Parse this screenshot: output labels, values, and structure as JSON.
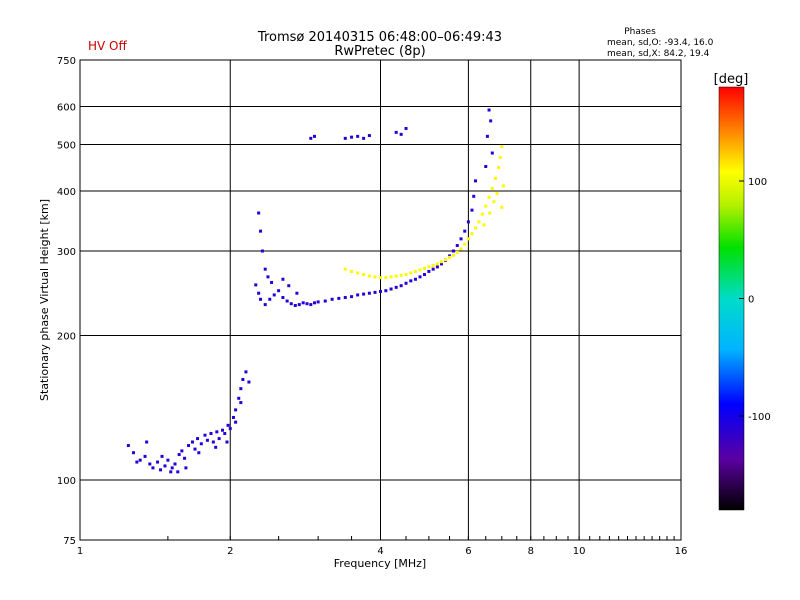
{
  "header": {
    "title_line1": "Tromsø 20140315 06:48:00–06:49:43",
    "title_line2": "RwPretec (8p)",
    "hv_status": "HV Off",
    "hv_color": "#cc0000",
    "phase_title": "Phases",
    "phase_o": "mean, sd,O: -93.4, 16.0",
    "phase_x": "mean, sd,X:  84.2, 19.4"
  },
  "chart_data": {
    "type": "scatter",
    "xlabel": "Frequency [MHz]",
    "ylabel": "Stationary phase Virtual Height [km]",
    "x_scale": "log",
    "y_scale": "log",
    "xlim": [
      1,
      16
    ],
    "ylim": [
      75,
      750
    ],
    "x_ticks": [
      1,
      2,
      4,
      6,
      8,
      10,
      16
    ],
    "y_ticks": [
      75,
      100,
      200,
      300,
      400,
      500,
      600,
      750
    ],
    "grid": true,
    "colorbar": {
      "label": "[deg]",
      "range": [
        -180,
        180
      ],
      "ticks": [
        100,
        0,
        -100
      ]
    },
    "series": [
      {
        "points": [
          [
            1.25,
            118,
            -110
          ],
          [
            1.28,
            114,
            -110
          ],
          [
            1.3,
            109,
            -110
          ],
          [
            1.32,
            110,
            -110
          ],
          [
            1.35,
            112,
            -110
          ],
          [
            1.38,
            108,
            -110
          ],
          [
            1.4,
            106,
            -110
          ],
          [
            1.43,
            109,
            -110
          ],
          [
            1.45,
            105,
            -110
          ],
          [
            1.48,
            107,
            -110
          ],
          [
            1.5,
            110,
            -110
          ],
          [
            1.53,
            106,
            -110
          ],
          [
            1.55,
            108,
            -110
          ],
          [
            1.58,
            113,
            -110
          ],
          [
            1.6,
            115,
            -110
          ],
          [
            1.62,
            111,
            -110
          ],
          [
            1.65,
            118,
            -110
          ],
          [
            1.68,
            120,
            -110
          ],
          [
            1.7,
            116,
            -110
          ],
          [
            1.72,
            122,
            -110
          ],
          [
            1.75,
            119,
            -110
          ],
          [
            1.78,
            124,
            -110
          ],
          [
            1.8,
            121,
            -110
          ],
          [
            1.83,
            125,
            -110
          ],
          [
            1.85,
            120,
            -110
          ],
          [
            1.88,
            126,
            -110
          ],
          [
            1.9,
            122,
            -110
          ],
          [
            1.93,
            127,
            -110
          ],
          [
            1.95,
            125,
            -110
          ],
          [
            1.98,
            130,
            -110
          ],
          [
            2.0,
            128,
            -110
          ],
          [
            2.03,
            135,
            -110
          ],
          [
            2.05,
            140,
            -110
          ],
          [
            2.08,
            148,
            -110
          ],
          [
            2.1,
            155,
            -110
          ],
          [
            2.12,
            162,
            -110
          ],
          [
            2.15,
            168,
            -110
          ],
          [
            2.18,
            160,
            -110
          ],
          [
            2.05,
            132,
            -110
          ],
          [
            2.1,
            145,
            -110
          ],
          [
            1.36,
            120,
            -110
          ],
          [
            1.46,
            112,
            -110
          ],
          [
            1.52,
            104,
            -110
          ],
          [
            1.57,
            104,
            -110
          ],
          [
            1.63,
            106,
            -110
          ],
          [
            1.73,
            114,
            -110
          ],
          [
            1.87,
            117,
            -110
          ],
          [
            1.97,
            120,
            -110
          ],
          [
            2.25,
            255,
            -110
          ],
          [
            2.28,
            245,
            -110
          ],
          [
            2.3,
            238,
            -110
          ],
          [
            2.35,
            232,
            -110
          ],
          [
            2.4,
            238,
            -110
          ],
          [
            2.45,
            243,
            -110
          ],
          [
            2.5,
            248,
            -110
          ],
          [
            2.55,
            240,
            -110
          ],
          [
            2.6,
            236,
            -110
          ],
          [
            2.65,
            233,
            -110
          ],
          [
            2.7,
            231,
            -110
          ],
          [
            2.75,
            232,
            -110
          ],
          [
            2.8,
            234,
            -110
          ],
          [
            2.85,
            233,
            -110
          ],
          [
            2.9,
            232,
            -110
          ],
          [
            2.95,
            234,
            -110
          ],
          [
            3.0,
            235,
            -110
          ],
          [
            3.1,
            236,
            -110
          ],
          [
            3.2,
            238,
            -110
          ],
          [
            3.3,
            239,
            -110
          ],
          [
            3.4,
            240,
            -110
          ],
          [
            3.5,
            241,
            -110
          ],
          [
            3.6,
            243,
            -110
          ],
          [
            3.7,
            244,
            -110
          ],
          [
            3.8,
            245,
            -110
          ],
          [
            3.9,
            246,
            -110
          ],
          [
            4.0,
            247,
            -110
          ],
          [
            4.1,
            248,
            -110
          ],
          [
            4.2,
            250,
            -110
          ],
          [
            4.3,
            252,
            -110
          ],
          [
            4.4,
            254,
            -110
          ],
          [
            4.5,
            257,
            -110
          ],
          [
            4.6,
            260,
            -110
          ],
          [
            4.7,
            262,
            -110
          ],
          [
            4.8,
            265,
            -110
          ],
          [
            4.9,
            268,
            -110
          ],
          [
            5.0,
            272,
            -110
          ],
          [
            5.1,
            275,
            -110
          ],
          [
            5.2,
            278,
            -110
          ],
          [
            5.3,
            282,
            -110
          ],
          [
            5.4,
            287,
            -110
          ],
          [
            5.5,
            293,
            -110
          ],
          [
            5.6,
            300,
            -110
          ],
          [
            5.7,
            308,
            -110
          ],
          [
            5.8,
            318,
            -110
          ],
          [
            5.9,
            330,
            -110
          ],
          [
            6.0,
            345,
            -110
          ],
          [
            6.1,
            365,
            -110
          ],
          [
            6.15,
            390,
            -110
          ],
          [
            6.2,
            420,
            -110
          ],
          [
            2.28,
            360,
            -110
          ],
          [
            2.3,
            330,
            -110
          ],
          [
            2.32,
            300,
            -110
          ],
          [
            2.35,
            275,
            -110
          ],
          [
            2.38,
            265,
            -110
          ],
          [
            2.42,
            258,
            -110
          ],
          [
            2.55,
            262,
            -110
          ],
          [
            2.62,
            254,
            -110
          ],
          [
            2.72,
            245,
            -110
          ],
          [
            6.5,
            450,
            -110
          ],
          [
            6.55,
            520,
            -110
          ],
          [
            6.6,
            590,
            -110
          ],
          [
            6.65,
            560,
            -110
          ],
          [
            6.7,
            480,
            -110
          ],
          [
            3.4,
            515,
            -110
          ],
          [
            3.5,
            518,
            -110
          ],
          [
            3.6,
            520,
            -110
          ],
          [
            3.7,
            515,
            -110
          ],
          [
            3.8,
            522,
            -110
          ],
          [
            2.9,
            515,
            -110
          ],
          [
            2.95,
            520,
            -110
          ],
          [
            4.3,
            530,
            -110
          ],
          [
            4.4,
            525,
            -110
          ],
          [
            4.5,
            540,
            -110
          ]
        ]
      },
      {
        "points": [
          [
            3.4,
            275,
            110
          ],
          [
            3.5,
            272,
            110
          ],
          [
            3.6,
            270,
            110
          ],
          [
            3.7,
            268,
            110
          ],
          [
            3.8,
            266,
            110
          ],
          [
            3.9,
            265,
            110
          ],
          [
            4.0,
            264,
            110
          ],
          [
            4.1,
            264,
            110
          ],
          [
            4.2,
            265,
            110
          ],
          [
            4.3,
            266,
            110
          ],
          [
            4.4,
            267,
            110
          ],
          [
            4.5,
            268,
            110
          ],
          [
            4.6,
            270,
            110
          ],
          [
            4.7,
            272,
            110
          ],
          [
            4.8,
            274,
            110
          ],
          [
            4.9,
            276,
            110
          ],
          [
            5.0,
            278,
            110
          ],
          [
            5.1,
            280,
            110
          ],
          [
            5.2,
            282,
            110
          ],
          [
            5.3,
            285,
            110
          ],
          [
            5.4,
            288,
            110
          ],
          [
            5.5,
            291,
            110
          ],
          [
            5.6,
            294,
            110
          ],
          [
            5.7,
            298,
            110
          ],
          [
            5.8,
            303,
            110
          ],
          [
            5.9,
            310,
            110
          ],
          [
            6.0,
            318,
            110
          ],
          [
            6.1,
            326,
            110
          ],
          [
            6.2,
            335,
            110
          ],
          [
            6.3,
            345,
            110
          ],
          [
            6.4,
            358,
            110
          ],
          [
            6.5,
            372,
            110
          ],
          [
            6.6,
            388,
            110
          ],
          [
            6.7,
            405,
            110
          ],
          [
            6.8,
            425,
            110
          ],
          [
            6.9,
            448,
            110
          ],
          [
            6.95,
            470,
            110
          ],
          [
            7.0,
            495,
            110
          ],
          [
            6.75,
            380,
            110
          ],
          [
            6.85,
            395,
            110
          ],
          [
            7.05,
            410,
            110
          ],
          [
            6.62,
            360,
            110
          ],
          [
            6.45,
            340,
            110
          ],
          [
            7.0,
            370,
            110
          ]
        ]
      }
    ]
  }
}
